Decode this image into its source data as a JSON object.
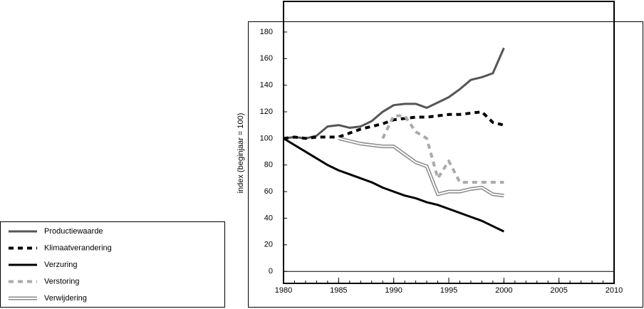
{
  "chart_data": {
    "type": "line",
    "y_label": "index (beginjaar = 100)",
    "x": [
      1980,
      1981,
      1982,
      1983,
      1984,
      1985,
      1986,
      1987,
      1988,
      1989,
      1990,
      1991,
      1992,
      1993,
      1994,
      1995,
      1996,
      1997,
      1998,
      1999,
      2000
    ],
    "xlim": [
      1980,
      2010
    ],
    "xticks": [
      1980,
      1985,
      1990,
      1995,
      2000,
      2005,
      2010
    ],
    "ylim": [
      -9,
      203
    ],
    "yticks": [
      0,
      20,
      40,
      60,
      80,
      100,
      120,
      140,
      160,
      180
    ],
    "series": [
      {
        "name": "Productiewaarde",
        "color": "#555555",
        "style": "solid",
        "values": [
          100,
          101,
          100,
          102,
          109,
          110,
          108,
          109,
          113,
          120,
          125,
          126,
          126,
          123,
          127,
          131,
          137,
          144,
          146,
          149,
          168
        ]
      },
      {
        "name": "Klimaatverandering",
        "color": "#000000",
        "style": "dashed",
        "values": [
          100,
          101,
          100,
          101,
          101,
          101,
          104,
          107,
          109,
          111,
          114,
          115,
          116,
          116,
          117,
          118,
          118,
          119,
          120,
          112,
          110
        ]
      },
      {
        "name": "Verzuring",
        "color": "#000000",
        "style": "solid",
        "values": [
          100,
          95,
          90,
          85,
          80,
          76,
          73,
          70,
          67,
          63,
          60,
          57,
          55,
          52,
          50,
          47,
          44,
          41,
          38,
          34,
          30
        ]
      },
      {
        "name": "Verstoring",
        "color": "#aaaaaa",
        "style": "dashed",
        "values": [
          null,
          null,
          null,
          null,
          null,
          null,
          null,
          null,
          null,
          100,
          117,
          117,
          105,
          100,
          70,
          83,
          67,
          67,
          67,
          67,
          67
        ]
      },
      {
        "name": "Verwijdering",
        "color": "#888888",
        "style": "double",
        "values": [
          null,
          null,
          null,
          null,
          null,
          100,
          98,
          96,
          95,
          94,
          94,
          88,
          82,
          79,
          58,
          60,
          60,
          62,
          63,
          58,
          57
        ]
      }
    ]
  }
}
